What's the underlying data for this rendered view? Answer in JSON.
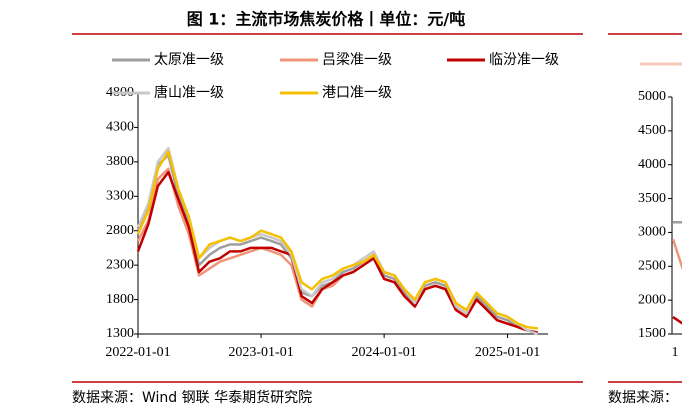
{
  "chart_data": [
    {
      "type": "line",
      "title": "图 1：主流市场焦炭价格丨单位：元/吨",
      "source": "数据来源：Wind 钢联 华泰期货研究院",
      "x": [
        "2022-01-01",
        "2022-02-01",
        "2022-03-01",
        "2022-04-01",
        "2022-05-01",
        "2022-06-01",
        "2022-07-01",
        "2022-08-01",
        "2022-09-01",
        "2022-10-01",
        "2022-11-01",
        "2022-12-01",
        "2023-01-01",
        "2023-02-01",
        "2023-03-01",
        "2023-04-01",
        "2023-05-01",
        "2023-06-01",
        "2023-07-01",
        "2023-08-01",
        "2023-09-01",
        "2023-10-01",
        "2023-11-01",
        "2023-12-01",
        "2024-01-01",
        "2024-02-01",
        "2024-03-01",
        "2024-04-01",
        "2024-05-01",
        "2024-06-01",
        "2024-07-01",
        "2024-08-01",
        "2024-09-01",
        "2024-10-01",
        "2024-11-01",
        "2024-12-01",
        "2025-01-01",
        "2025-02-01",
        "2025-03-01",
        "2025-04-01"
      ],
      "xlim": [
        "2022-01-01",
        "2025-05-01"
      ],
      "xticks": [
        "2022-01-01",
        "2023-01-01",
        "2024-01-01",
        "2025-01-01"
      ],
      "ylim": [
        1300,
        4800
      ],
      "yticks": [
        1300,
        1800,
        2300,
        2800,
        3300,
        3800,
        4300,
        4800
      ],
      "series": [
        {
          "name": "太原准一级",
          "color": "#9e9e9e",
          "values": [
            2800,
            3150,
            3750,
            3900,
            3300,
            2900,
            2300,
            2450,
            2550,
            2600,
            2600,
            2650,
            2700,
            2650,
            2600,
            2400,
            1900,
            1850,
            2000,
            2050,
            2200,
            2250,
            2350,
            2450,
            2150,
            2100,
            1900,
            1700,
            2000,
            2050,
            2000,
            1700,
            1600,
            1850,
            1700,
            1550,
            1500,
            1400,
            1350,
            1320
          ]
        },
        {
          "name": "吕梁准一级",
          "color": "#f0957a",
          "values": [
            2650,
            2950,
            3550,
            3700,
            3150,
            2750,
            2150,
            2250,
            2350,
            2400,
            2450,
            2500,
            2550,
            2500,
            2450,
            2300,
            1800,
            1700,
            1950,
            2000,
            2150,
            2200,
            2300,
            2400,
            2100,
            2050,
            1850,
            1700,
            1950,
            2000,
            1950,
            1650,
            1550,
            1800,
            1650,
            1500,
            1450,
            1400,
            1350,
            1300
          ]
        },
        {
          "name": "临汾准一级",
          "color": "#c00000",
          "values": [
            2500,
            2900,
            3450,
            3650,
            3250,
            2850,
            2200,
            2350,
            2400,
            2500,
            2500,
            2550,
            2550,
            2550,
            2500,
            2450,
            1850,
            1750,
            1950,
            2050,
            2150,
            2200,
            2300,
            2400,
            2100,
            2050,
            1850,
            1700,
            1950,
            2000,
            1950,
            1650,
            1550,
            1800,
            1650,
            1500,
            1450,
            1400,
            1350,
            1320
          ]
        },
        {
          "name": "唐山准一级",
          "color": "#c8c8c8",
          "values": [
            2850,
            3200,
            3800,
            4000,
            3400,
            3000,
            2400,
            2550,
            2650,
            2700,
            2650,
            2700,
            2750,
            2700,
            2650,
            2450,
            1950,
            1850,
            2050,
            2100,
            2250,
            2300,
            2400,
            2500,
            2200,
            2150,
            1950,
            1750,
            2050,
            2100,
            2050,
            1700,
            1600,
            1900,
            1750,
            1600,
            1550,
            1450,
            1350,
            1300
          ]
        },
        {
          "name": "港口准一级",
          "color": "#f5c000",
          "values": [
            2750,
            3100,
            3700,
            3950,
            3400,
            3000,
            2400,
            2600,
            2650,
            2700,
            2650,
            2700,
            2800,
            2750,
            2700,
            2500,
            2050,
            1950,
            2100,
            2150,
            2250,
            2300,
            2350,
            2450,
            2200,
            2150,
            1950,
            1800,
            2050,
            2100,
            2050,
            1750,
            1650,
            1900,
            1750,
            1600,
            1550,
            1450,
            1400,
            1380
          ]
        }
      ]
    },
    {
      "type": "line",
      "source": "数据来源：",
      "categories": [
        "1",
        null
      ],
      "ylim": [
        1500,
        5000
      ],
      "yticks": [
        1500,
        2000,
        2500,
        3000,
        3500,
        4000,
        4500,
        5000
      ],
      "series": [
        {
          "color": "#9e9e9e",
          "values": [
            3150,
            3150
          ]
        },
        {
          "color": "#f0957a",
          "values": [
            2900,
            2450
          ]
        },
        {
          "color": "#c00000",
          "values": [
            1750,
            1650
          ]
        }
      ]
    }
  ]
}
